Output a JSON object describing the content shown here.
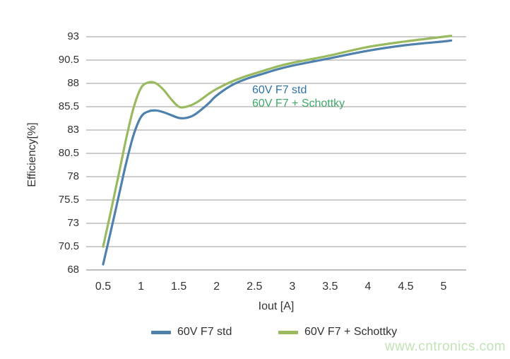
{
  "watermark": {
    "text": "www.cntronics.com",
    "color": "#c3e2b7"
  },
  "annotations": [
    {
      "text": "60V F7 std",
      "color": "#2e74a8"
    },
    {
      "text": "60V F7 + Schottky",
      "color": "#3fa968"
    }
  ],
  "chart_data": {
    "type": "line",
    "title": "",
    "xlabel": "Iout [A]",
    "ylabel": "Efficiency[%]",
    "grid": "horizontal",
    "legend_position": "bottom",
    "gridline_color": "#9b9b9b",
    "baseline_color": "#7f7f7f",
    "xlim": [
      0.5,
      5.1
    ],
    "ylim": [
      68,
      93
    ],
    "x_ticks": [
      "0.5",
      "1",
      "1.5",
      "2",
      "2.5",
      "3",
      "3.5",
      "4",
      "4.5",
      "5"
    ],
    "y_ticks": [
      "93",
      "90.5",
      "88",
      "85.5",
      "83",
      "80.5",
      "78",
      "75.5",
      "73",
      "70.5",
      "68"
    ],
    "x": [
      0.5,
      0.6,
      0.7,
      0.8,
      0.9,
      1.0,
      1.1,
      1.2,
      1.3,
      1.4,
      1.5,
      1.6,
      1.7,
      1.8,
      1.9,
      2.0,
      2.2,
      2.4,
      2.6,
      2.8,
      3.0,
      3.25,
      3.5,
      4.0,
      4.5,
      5.0,
      5.1
    ],
    "series": [
      {
        "name": "60V F7 std",
        "color": "#4f81ad",
        "values": [
          68.6,
          72.1,
          75.7,
          79.3,
          82.4,
          84.4,
          85.0,
          85.1,
          84.9,
          84.6,
          84.3,
          84.3,
          84.6,
          85.2,
          85.9,
          86.7,
          87.8,
          88.5,
          89.0,
          89.5,
          89.9,
          90.3,
          90.7,
          91.5,
          92.1,
          92.5,
          92.6
        ]
      },
      {
        "name": "60V F7 + Schottky",
        "color": "#9aba5f",
        "values": [
          70.5,
          74.2,
          78.0,
          81.9,
          85.3,
          87.5,
          88.1,
          88.0,
          87.3,
          86.3,
          85.5,
          85.5,
          85.8,
          86.3,
          86.9,
          87.4,
          88.2,
          88.8,
          89.3,
          89.8,
          90.2,
          90.6,
          91.0,
          91.9,
          92.5,
          93.0,
          93.1
        ]
      }
    ]
  }
}
